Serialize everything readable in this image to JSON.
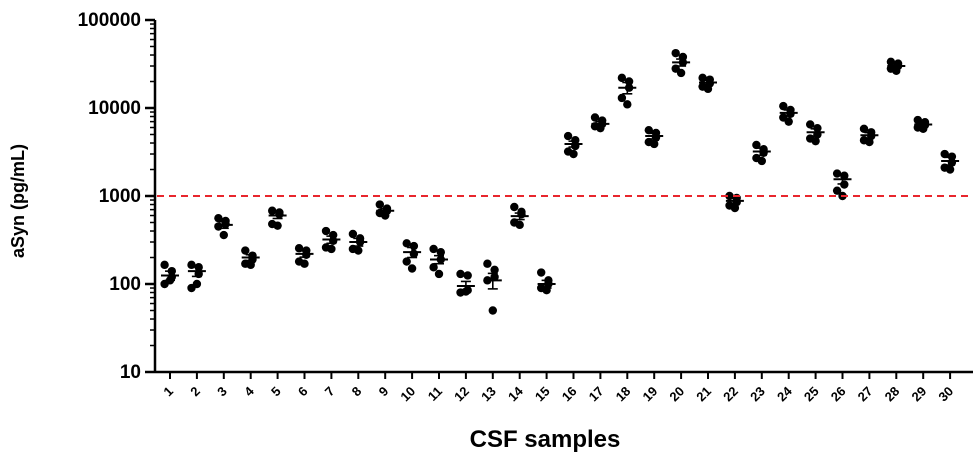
{
  "chart_data": {
    "type": "scatter",
    "xlabel": "CSF samples",
    "ylabel": "aSyn (pg/mL)",
    "yscale": "log",
    "ylim": [
      10,
      100000
    ],
    "yticks": [
      {
        "value": 10,
        "label": "10"
      },
      {
        "value": 100,
        "label": "100"
      },
      {
        "value": 1000,
        "label": "1000"
      },
      {
        "value": 10000,
        "label": "10000"
      },
      {
        "value": 100000,
        "label": "100000"
      }
    ],
    "categories": [
      "1",
      "2",
      "3",
      "4",
      "5",
      "6",
      "7",
      "8",
      "9",
      "10",
      "11",
      "12",
      "13",
      "14",
      "15",
      "16",
      "17",
      "18",
      "19",
      "20",
      "21",
      "22",
      "23",
      "24",
      "25",
      "26",
      "27",
      "28",
      "29",
      "30"
    ],
    "threshold": {
      "value": 1000,
      "color": "#e8262d",
      "style": "dashed"
    },
    "point_color": "#000000",
    "grid": false,
    "legend": "none",
    "samples": [
      {
        "label": "1",
        "mean": 125,
        "sem": 15,
        "points": [
          165,
          140,
          120,
          100,
          110
        ]
      },
      {
        "label": "2",
        "mean": 140,
        "sem": 18,
        "points": [
          165,
          155,
          130,
          90,
          100
        ]
      },
      {
        "label": "3",
        "mean": 470,
        "sem": 40,
        "points": [
          560,
          520,
          480,
          450,
          360
        ]
      },
      {
        "label": "4",
        "mean": 200,
        "sem": 15,
        "points": [
          240,
          210,
          190,
          170,
          165
        ]
      },
      {
        "label": "5",
        "mean": 600,
        "sem": 45,
        "points": [
          680,
          650,
          620,
          480,
          460
        ]
      },
      {
        "label": "6",
        "mean": 220,
        "sem": 18,
        "points": [
          255,
          240,
          215,
          180,
          170
        ]
      },
      {
        "label": "7",
        "mean": 320,
        "sem": 30,
        "points": [
          400,
          360,
          310,
          260,
          250
        ]
      },
      {
        "label": "8",
        "mean": 300,
        "sem": 30,
        "points": [
          370,
          330,
          300,
          250,
          240
        ]
      },
      {
        "label": "9",
        "mean": 680,
        "sem": 35,
        "points": [
          800,
          720,
          680,
          640,
          600
        ]
      },
      {
        "label": "10",
        "mean": 230,
        "sem": 30,
        "points": [
          290,
          270,
          220,
          180,
          150
        ]
      },
      {
        "label": "11",
        "mean": 190,
        "sem": 20,
        "points": [
          250,
          230,
          190,
          155,
          130
        ]
      },
      {
        "label": "12",
        "mean": 95,
        "sem": 12,
        "points": [
          130,
          125,
          85,
          80,
          82
        ]
      },
      {
        "label": "13",
        "mean": 110,
        "sem": 22,
        "points": [
          170,
          145,
          120,
          110,
          50
        ]
      },
      {
        "label": "14",
        "mean": 590,
        "sem": 50,
        "points": [
          750,
          660,
          620,
          500,
          470
        ]
      },
      {
        "label": "15",
        "mean": 100,
        "sem": 10,
        "points": [
          135,
          110,
          100,
          90,
          85
        ]
      },
      {
        "label": "16",
        "mean": 3900,
        "sem": 300,
        "points": [
          4800,
          4300,
          3700,
          3200,
          3000
        ]
      },
      {
        "label": "17",
        "mean": 6600,
        "sem": 400,
        "points": [
          7800,
          7200,
          6600,
          6200,
          5900
        ]
      },
      {
        "label": "18",
        "mean": 17000,
        "sem": 2500,
        "points": [
          22000,
          20000,
          17000,
          13000,
          11000
        ]
      },
      {
        "label": "19",
        "mean": 4800,
        "sem": 350,
        "points": [
          5600,
          5200,
          4600,
          4100,
          3900
        ]
      },
      {
        "label": "20",
        "mean": 33000,
        "sem": 3000,
        "points": [
          42000,
          38000,
          33000,
          28000,
          25000
        ]
      },
      {
        "label": "21",
        "mean": 19500,
        "sem": 1200,
        "points": [
          22000,
          21000,
          19000,
          17500,
          16500
        ]
      },
      {
        "label": "22",
        "mean": 880,
        "sem": 60,
        "points": [
          1000,
          950,
          850,
          780,
          730
        ]
      },
      {
        "label": "23",
        "mean": 3200,
        "sem": 300,
        "points": [
          3800,
          3400,
          3100,
          2700,
          2500
        ]
      },
      {
        "label": "24",
        "mean": 8800,
        "sem": 700,
        "points": [
          10500,
          9500,
          8600,
          7800,
          7000
        ]
      },
      {
        "label": "25",
        "mean": 5300,
        "sem": 500,
        "points": [
          6500,
          5900,
          5000,
          4500,
          4200
        ]
      },
      {
        "label": "26",
        "mean": 1550,
        "sem": 180,
        "points": [
          1800,
          1700,
          1350,
          1150,
          1000
        ]
      },
      {
        "label": "27",
        "mean": 4900,
        "sem": 350,
        "points": [
          5800,
          5300,
          4800,
          4300,
          4100
        ]
      },
      {
        "label": "28",
        "mean": 30000,
        "sem": 1500,
        "points": [
          33500,
          32000,
          30000,
          28000,
          26500
        ]
      },
      {
        "label": "29",
        "mean": 6500,
        "sem": 300,
        "points": [
          7300,
          6900,
          6400,
          6000,
          5800
        ]
      },
      {
        "label": "30",
        "mean": 2500,
        "sem": 250,
        "points": [
          3000,
          2800,
          2400,
          2100,
          2000
        ]
      }
    ]
  }
}
